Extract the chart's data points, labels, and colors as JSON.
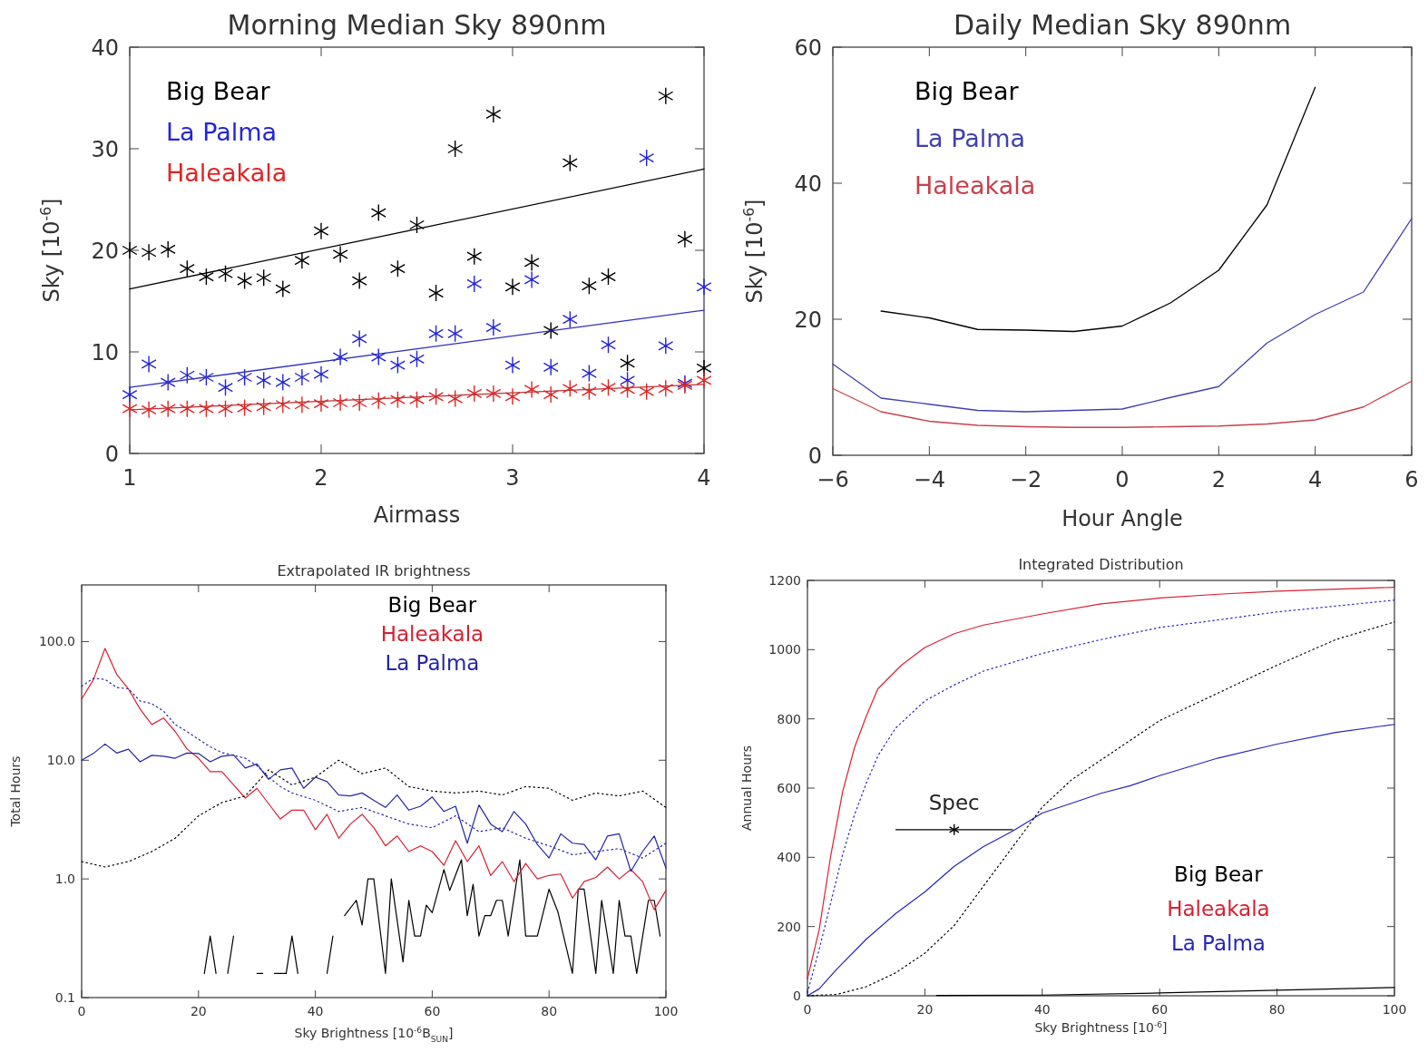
{
  "chart_data": [
    {
      "type": "scatter",
      "title": "Morning Median Sky 890nm",
      "xlabel": "Airmass",
      "ylabel": "Sky [10$^{-6}$]",
      "xlim": [
        1,
        4
      ],
      "ylim": [
        0,
        40
      ],
      "xticks": [
        1,
        2,
        3,
        4
      ],
      "yticks": [
        0,
        10,
        20,
        30,
        40
      ],
      "legend": "top left",
      "marker": "cross",
      "x": [
        1.0,
        1.1,
        1.2,
        1.3,
        1.4,
        1.5,
        1.6,
        1.7,
        1.8,
        1.9,
        2.0,
        2.1,
        2.2,
        2.3,
        2.4,
        2.5,
        2.6,
        2.7,
        2.8,
        2.9,
        3.0,
        3.1,
        3.2,
        3.3,
        3.4,
        3.5,
        3.6,
        3.7,
        3.8,
        3.9,
        4.0
      ],
      "series": [
        {
          "name": "Big Bear",
          "color": "#000000",
          "values": [
            20.0,
            19.8,
            20.1,
            18.2,
            17.4,
            17.7,
            17.0,
            17.3,
            16.2,
            19.0,
            21.9,
            19.6,
            17.0,
            23.7,
            18.2,
            22.5,
            15.8,
            30.0,
            19.4,
            33.4,
            16.4,
            18.8,
            12.1,
            28.6,
            16.5,
            17.4,
            8.9,
            null,
            35.2,
            21.1,
            8.4
          ]
        },
        {
          "name": "La Palma",
          "color": "#2424d8",
          "values": [
            5.8,
            8.8,
            7.0,
            7.7,
            7.5,
            6.5,
            7.5,
            7.2,
            7.0,
            7.5,
            7.8,
            9.5,
            11.3,
            9.5,
            8.7,
            9.3,
            11.8,
            11.8,
            16.7,
            12.4,
            8.7,
            17.1,
            8.5,
            13.2,
            7.9,
            10.7,
            7.2,
            29.1,
            10.6,
            6.9,
            16.4
          ]
        },
        {
          "name": "Haleakala",
          "color": "#e02424",
          "values": [
            4.4,
            4.3,
            4.4,
            4.4,
            4.4,
            4.4,
            4.5,
            4.6,
            4.8,
            4.8,
            4.9,
            5.0,
            5.0,
            5.2,
            5.3,
            5.3,
            5.6,
            5.4,
            5.9,
            5.9,
            5.6,
            6.3,
            5.8,
            6.4,
            6.1,
            6.5,
            6.3,
            6.1,
            6.4,
            6.7,
            7.2
          ]
        },
        {
          "type": "line",
          "color": "#000000",
          "marker": "none",
          "x": [
            1,
            4
          ],
          "values": [
            16.2,
            28.0
          ]
        },
        {
          "type": "line",
          "color": "#3030c0",
          "marker": "none",
          "x": [
            1,
            4
          ],
          "values": [
            6.5,
            14.1
          ]
        },
        {
          "type": "line",
          "color": "#c03030",
          "marker": "none",
          "x": [
            1,
            4
          ],
          "values": [
            4.3,
            6.8
          ]
        }
      ]
    },
    {
      "type": "line",
      "title": "Daily Median Sky 890nm",
      "xlabel": "Hour Angle",
      "ylabel": "Sky [10$^{-6}$]",
      "xlim": [
        -6,
        6
      ],
      "ylim": [
        0,
        60
      ],
      "xticks": [
        {
          "value": -6,
          "label": "−6"
        },
        {
          "value": -4,
          "label": "−4"
        },
        {
          "value": -2,
          "label": "−2"
        },
        0,
        2,
        4,
        6
      ],
      "yticks": [
        0,
        20,
        40,
        60
      ],
      "legend": "top left",
      "x": [
        -6,
        -5,
        -4,
        -3,
        -2,
        -1,
        0,
        1,
        2,
        3,
        4,
        5,
        6
      ],
      "series": [
        {
          "name": "Big Bear",
          "color": "#000000",
          "values": [
            null,
            21.2,
            20.2,
            18.5,
            18.4,
            18.2,
            19.0,
            22.4,
            27.2,
            36.8,
            54.1,
            null,
            null
          ]
        },
        {
          "name": "La Palma",
          "color": "#4040b0",
          "values": [
            13.4,
            8.4,
            7.5,
            6.6,
            6.4,
            6.6,
            6.8,
            8.5,
            10.1,
            16.5,
            20.7,
            24.0,
            34.8
          ]
        },
        {
          "name": "Haleakala",
          "color": "#c8404c",
          "values": [
            9.8,
            6.4,
            5.0,
            4.4,
            4.2,
            4.1,
            4.1,
            4.2,
            4.3,
            4.6,
            5.2,
            7.1,
            10.9
          ]
        }
      ]
    },
    {
      "type": "line",
      "title": "Extrapolated IR brightness",
      "xlabel": "Sky Brightness [10$^{-6}$B$_{SUN}$]",
      "ylabel": "Total Hours",
      "xlim": [
        0,
        100
      ],
      "ylim": [
        0.1,
        300
      ],
      "log": true,
      "xticks": [
        0,
        20,
        40,
        60,
        80,
        100
      ],
      "yticks": [
        0.1,
        {
          "value": 1,
          "label": "1.0"
        },
        {
          "value": 10,
          "label": "10.0"
        },
        {
          "value": 100,
          "label": "100.0"
        }
      ],
      "legend": "top",
      "series": [
        {
          "name": "Big Bear",
          "color": "#000000",
          "x": [
            21,
            22,
            23,
            24,
            25,
            26,
            28,
            30,
            31,
            32,
            33,
            35,
            36,
            37,
            40,
            42,
            43,
            44,
            45,
            47,
            48,
            49,
            50,
            52,
            53,
            55,
            56,
            57,
            58,
            59,
            60,
            62,
            63,
            65,
            66,
            67,
            68,
            69,
            70,
            71,
            72,
            73,
            75,
            76,
            78,
            80,
            81.5,
            84,
            85,
            86,
            88,
            89,
            91,
            92,
            93,
            94,
            95,
            97,
            98,
            99
          ],
          "values": [
            0.16,
            0.33,
            0.16,
            null,
            0.16,
            0.33,
            null,
            0.16,
            0.16,
            null,
            0.16,
            0.16,
            0.33,
            0.16,
            null,
            0.16,
            0.33,
            null,
            0.49,
            0.66,
            0.41,
            1.0,
            1.0,
            0.16,
            1.0,
            0.2,
            0.66,
            0.33,
            0.33,
            0.6,
            0.52,
            1.2,
            0.8,
            1.45,
            0.49,
            0.9,
            0.33,
            0.49,
            0.49,
            0.66,
            0.66,
            0.33,
            1.45,
            0.33,
            0.33,
            0.82,
            0.53,
            0.16,
            0.82,
            0.82,
            0.16,
            0.66,
            0.16,
            0.66,
            0.33,
            0.33,
            0.16,
            0.66,
            0.66,
            0.33
          ]
        },
        {
          "name": "Haleakala",
          "color": "#d82030",
          "x": [
            0,
            2,
            4,
            6,
            8,
            10,
            12,
            14,
            16,
            18,
            20,
            22,
            24,
            26,
            28,
            30,
            32,
            34,
            36,
            38,
            40,
            42,
            44,
            46,
            48,
            50,
            52,
            54,
            56,
            58,
            60,
            62,
            64,
            66,
            68,
            70,
            72,
            74,
            76,
            78,
            80,
            82,
            84,
            86,
            88,
            90,
            92,
            94,
            96,
            98,
            100
          ],
          "values": [
            32.8,
            47.6,
            87.5,
            53,
            40,
            27,
            20,
            22.7,
            17.5,
            12.5,
            10.4,
            8.0,
            8.0,
            6.2,
            4.8,
            5.8,
            4.3,
            3.2,
            3.8,
            3.8,
            2.6,
            3.5,
            2.2,
            2.9,
            3.5,
            2.7,
            1.9,
            2.3,
            1.7,
            1.9,
            1.7,
            1.3,
            2.1,
            1.4,
            1.9,
            1.07,
            1.4,
            0.95,
            1.35,
            1.0,
            1.07,
            1.1,
            0.69,
            0.95,
            1.03,
            1.26,
            1.0,
            1.2,
            0.95,
            0.55,
            0.8
          ]
        },
        {
          "name": "La Palma",
          "color": "#2424a8",
          "x": [
            0,
            2,
            4,
            6,
            8,
            10,
            12,
            14,
            16,
            18,
            20,
            22,
            24,
            26,
            28,
            30,
            32,
            34,
            36,
            38,
            40,
            42,
            44,
            46,
            48,
            50,
            52,
            54,
            56,
            58,
            60,
            62,
            64,
            66,
            68,
            70,
            72,
            74,
            76,
            78,
            80,
            82,
            84,
            86,
            88,
            90,
            92,
            94,
            96,
            98,
            100
          ],
          "values": [
            10,
            11.4,
            13.7,
            11.5,
            12.4,
            9.7,
            11.0,
            10.8,
            10.4,
            11.5,
            11.4,
            9.7,
            10.8,
            11.1,
            8.6,
            9.3,
            6.9,
            8.3,
            8.6,
            5.8,
            7.2,
            6.6,
            5.1,
            5.0,
            5.3,
            4.6,
            4.0,
            5.1,
            3.8,
            4.1,
            4.9,
            3.7,
            4.1,
            2.0,
            4.2,
            2.9,
            2.5,
            3.7,
            2.9,
            1.95,
            1.5,
            2.4,
            2.0,
            1.95,
            1.45,
            2.3,
            2.4,
            1.16,
            1.7,
            2.3,
            1.24
          ]
        },
        {
          "color": "#000000",
          "line_style": "dotted",
          "x": [
            0,
            4,
            8,
            12,
            16,
            20,
            24,
            28,
            32,
            36,
            40,
            44,
            48,
            52,
            56,
            60,
            64,
            68,
            72,
            76,
            80,
            84,
            88,
            92,
            96,
            100
          ],
          "values": [
            1.4,
            1.26,
            1.4,
            1.7,
            2.2,
            3.4,
            4.4,
            5.0,
            8.3,
            6.2,
            7.2,
            10,
            7.7,
            8.6,
            6.0,
            5.5,
            5.3,
            5.5,
            5.1,
            6.0,
            5.8,
            4.6,
            5.3,
            5.0,
            5.5,
            4.0
          ]
        },
        {
          "color": "#2424a8",
          "line_style": "dotted",
          "x": [
            0,
            2,
            4,
            6,
            8,
            10,
            12,
            14,
            16,
            18,
            20,
            22,
            24,
            26,
            28,
            30,
            32,
            34,
            36,
            40,
            44,
            48,
            52,
            56,
            60,
            64,
            68,
            72,
            76,
            80,
            84,
            88,
            92,
            96,
            100
          ],
          "values": [
            42,
            49,
            48,
            41,
            40,
            31.6,
            30,
            26,
            20,
            17.5,
            15,
            13,
            11.6,
            11,
            10.4,
            9,
            7.2,
            6,
            5.3,
            4.6,
            3.7,
            4,
            3.4,
            2.9,
            2.7,
            3.4,
            2.5,
            2.7,
            2.2,
            1.9,
            1.6,
            1.7,
            1.8,
            1.5,
            2.0
          ]
        }
      ]
    },
    {
      "type": "line",
      "title": "Integrated Distribution",
      "xlabel": "Sky Brightness [10$^{-6}$]",
      "ylabel": "Annual Hours",
      "xlim": [
        0,
        100
      ],
      "ylim": [
        0,
        1200
      ],
      "xticks": [
        0,
        20,
        40,
        60,
        80,
        100
      ],
      "yticks": [
        0,
        200,
        400,
        600,
        800,
        1000,
        1200
      ],
      "legend": "bottom right",
      "annotations": [
        {
          "text": "Spec",
          "x": 25,
          "y": 480
        }
      ],
      "series": [
        {
          "name": "Big Bear",
          "color": "#000000",
          "x": [
            22,
            40,
            60,
            80,
            100
          ],
          "values": [
            1,
            2,
            8,
            16,
            24
          ]
        },
        {
          "name": "Haleakala",
          "color": "#d82030",
          "x": [
            0,
            2,
            4,
            6,
            8,
            10,
            12,
            16,
            20,
            25,
            30,
            40,
            50,
            60,
            70,
            80,
            90,
            100
          ],
          "values": [
            49,
            191,
            408,
            590,
            716,
            807,
            887,
            955,
            1006,
            1046,
            1071,
            1103,
            1132,
            1149,
            1160,
            1169,
            1175,
            1180
          ]
        },
        {
          "name": "La Palma",
          "color": "#2424c0",
          "x": [
            0,
            2,
            5,
            10,
            15,
            20,
            25,
            30,
            35,
            40,
            45,
            50,
            55,
            60,
            70,
            80,
            90,
            100
          ],
          "values": [
            0,
            20,
            77,
            163,
            237,
            300,
            374,
            431,
            476,
            528,
            556,
            585,
            607,
            636,
            687,
            727,
            761,
            784
          ]
        },
        {
          "color": "#2424c0",
          "line_style": "dotted",
          "x": [
            0,
            2,
            4,
            6,
            8,
            10,
            12,
            15,
            20,
            25,
            30,
            40,
            50,
            60,
            70,
            80,
            90,
            100
          ],
          "values": [
            9,
            134,
            271,
            408,
            522,
            613,
            693,
            773,
            852,
            898,
            938,
            989,
            1029,
            1064,
            1086,
            1109,
            1126,
            1143
          ]
        },
        {
          "color": "#000000",
          "line_style": "dotted",
          "x": [
            0,
            5,
            10,
            15,
            20,
            25,
            30,
            35,
            40,
            45,
            50,
            55,
            60,
            70,
            80,
            90,
            100
          ],
          "values": [
            0,
            4,
            26,
            66,
            123,
            203,
            317,
            431,
            545,
            624,
            681,
            738,
            795,
            875,
            955,
            1029,
            1080
          ]
        },
        {
          "type": "scatter",
          "color": "#000000",
          "marker": "cross",
          "x": [
            25
          ],
          "values": [
            480
          ],
          "xerrors": [
            [
              15,
              35
            ]
          ]
        }
      ]
    }
  ]
}
